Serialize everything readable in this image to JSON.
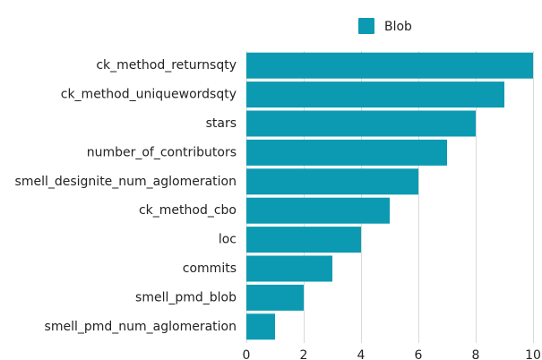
{
  "chart_data": {
    "type": "bar",
    "orientation": "horizontal",
    "title": "",
    "xlabel": "",
    "ylabel": "",
    "categories": [
      "ck_method_returnsqty",
      "ck_method_uniquewordsqty",
      "stars",
      "number_of_contributors",
      "smell_designite_num_aglomeration",
      "ck_method_cbo",
      "loc",
      "commits",
      "smell_pmd_blob",
      "smell_pmd_num_aglomeration"
    ],
    "series": [
      {
        "name": "Blob",
        "color": "#0b9ab1",
        "values": [
          10,
          9,
          8,
          7,
          6,
          5,
          4,
          3,
          2,
          1
        ]
      }
    ],
    "xlim": [
      0,
      10
    ],
    "xticks": [
      0,
      2,
      4,
      6,
      8,
      10
    ],
    "grid": "vertical",
    "legend": "top-center"
  }
}
